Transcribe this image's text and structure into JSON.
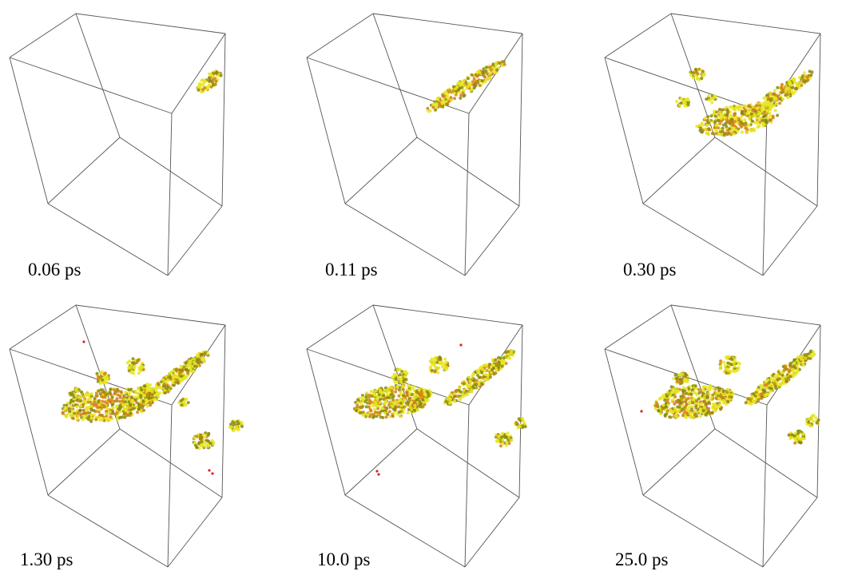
{
  "panels": [
    {
      "label": "0.06 ps"
    },
    {
      "label": "0.11 ps"
    },
    {
      "label": "0.30 ps"
    },
    {
      "label": "1.30 ps"
    },
    {
      "label": "10.0 ps"
    },
    {
      "label": "25.0 ps"
    }
  ]
}
